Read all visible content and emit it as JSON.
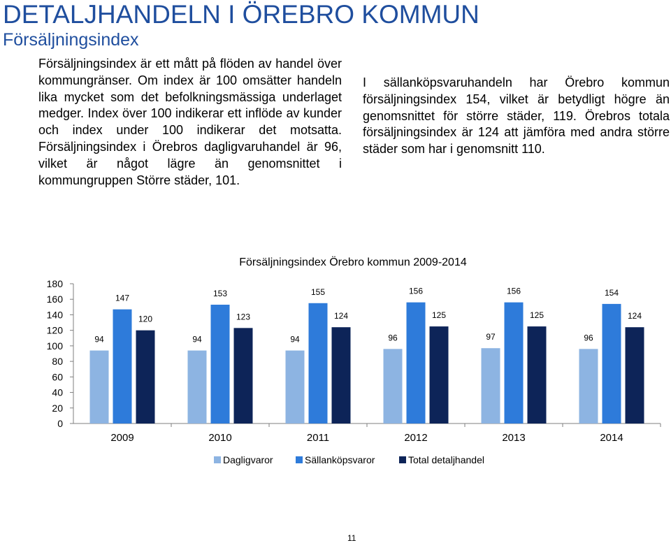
{
  "header": {
    "title": "DETALJHANDELN I ÖREBRO KOMMUN",
    "subtitle": "Försäljningsindex"
  },
  "body": {
    "left_paragraph": "Försäljningsindex är ett mått på flöden av handel över kommungränser. Om index är 100 omsätter handeln lika mycket som det befolkningsmässiga underlaget medger. Index över 100 indikerar ett inflöde av kunder och index under 100 indikerar det motsatta. Försäljningsindex i Örebros dagligvaruhandel är 96, vilket är något lägre än genomsnittet i kommungruppen Större städer, 101.",
    "right_paragraph": "I sällanköpsvaruhandeln har Örebro kommun försäljningsindex 154, vilket är betydligt högre än genomsnittet för större städer, 119. Örebros totala försäljningsindex är 124 att jämföra med andra större städer som har i genomsnitt 110."
  },
  "chart_data": {
    "type": "bar",
    "title": "Försäljningsindex Örebro kommun 2009-2014",
    "categories": [
      "2009",
      "2010",
      "2011",
      "2012",
      "2013",
      "2014"
    ],
    "series": [
      {
        "name": "Dagligvaror",
        "values": [
          94,
          94,
          94,
          96,
          97,
          96
        ],
        "color": "#8DB4E2"
      },
      {
        "name": "Sällanköpsvaror",
        "values": [
          147,
          153,
          155,
          156,
          156,
          154
        ],
        "color": "#2E7BDA"
      },
      {
        "name": "Total detaljhandel",
        "values": [
          120,
          123,
          124,
          125,
          125,
          124
        ],
        "color": "#0D2458"
      }
    ],
    "y_ticks": [
      0,
      20,
      40,
      60,
      80,
      100,
      120,
      140,
      160,
      180
    ],
    "ylim": [
      0,
      180
    ],
    "xlabel": "",
    "ylabel": "",
    "grid": false,
    "legend_position": "bottom"
  },
  "footer": {
    "page_number": "11"
  }
}
